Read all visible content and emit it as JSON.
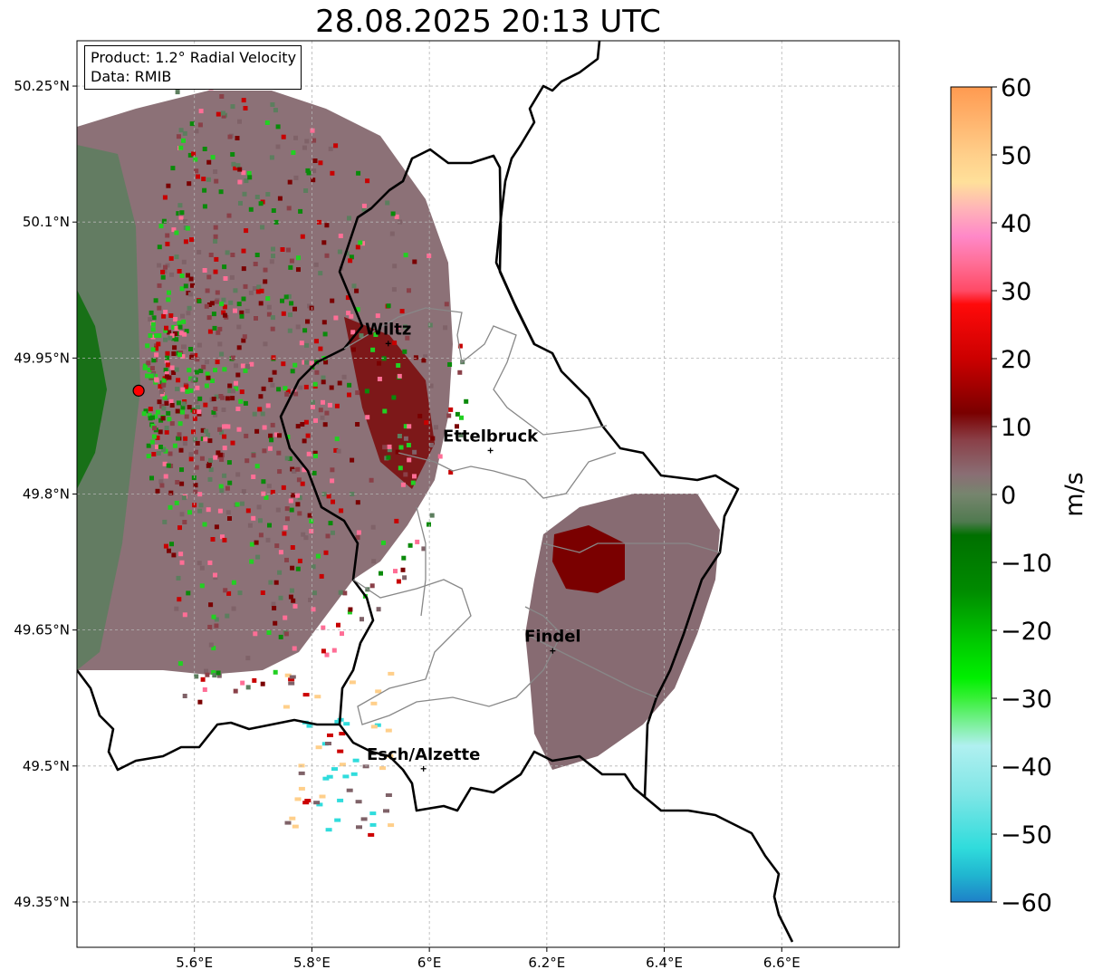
{
  "title": "28.08.2025 20:13 UTC",
  "info": {
    "product": "Product: 1.2° Radial Velocity",
    "data": "Data: RMIB"
  },
  "map": {
    "lon_range": [
      5.4,
      6.8
    ],
    "lat_range": [
      49.3,
      50.3
    ],
    "lon_ticks": [
      "5.6°E",
      "5.8°E",
      "6°E",
      "6.2°E",
      "6.4°E",
      "6.6°E"
    ],
    "lon_tick_values": [
      5.6,
      5.8,
      6.0,
      6.2,
      6.4,
      6.6
    ],
    "lat_ticks": [
      "50.25°N",
      "50.1°N",
      "49.95°N",
      "49.8°N",
      "49.65°N",
      "49.5°N",
      "49.35°N"
    ],
    "lat_tick_values": [
      50.25,
      50.1,
      49.95,
      49.8,
      49.65,
      49.5,
      49.35
    ],
    "grid": true,
    "radar_site": {
      "lon": 5.505,
      "lat": 49.914,
      "color": "#ff0000"
    },
    "cities": [
      {
        "name": "Wiltz",
        "lon": 5.93,
        "lat": 49.966
      },
      {
        "name": "Ettelbruck",
        "lon": 6.104,
        "lat": 49.848
      },
      {
        "name": "Findel",
        "lon": 6.21,
        "lat": 49.627
      },
      {
        "name": "Esch/Alzette",
        "lon": 5.99,
        "lat": 49.497
      }
    ]
  },
  "colorbar": {
    "label": "m/s",
    "range": [
      -60,
      60
    ],
    "ticks": [
      "60",
      "50",
      "40",
      "30",
      "20",
      "10",
      "0",
      "−10",
      "−20",
      "−30",
      "−40",
      "−50",
      "−60"
    ],
    "tick_values": [
      60,
      50,
      40,
      30,
      20,
      10,
      0,
      -10,
      -20,
      -30,
      -40,
      -50,
      -60
    ],
    "stops": [
      {
        "v": 60,
        "c": "#ff9a50"
      },
      {
        "v": 55,
        "c": "#ffb46e"
      },
      {
        "v": 50,
        "c": "#ffcf8a"
      },
      {
        "v": 46,
        "c": "#ffe09a"
      },
      {
        "v": 42,
        "c": "#ffb3b8"
      },
      {
        "v": 38,
        "c": "#ff88c8"
      },
      {
        "v": 34,
        "c": "#ff6e96"
      },
      {
        "v": 30,
        "c": "#ff4a66"
      },
      {
        "v": 28,
        "c": "#ff0a0a"
      },
      {
        "v": 20,
        "c": "#cc0000"
      },
      {
        "v": 12,
        "c": "#7a0000"
      },
      {
        "v": 8,
        "c": "#8a4048"
      },
      {
        "v": 3,
        "c": "#8a6e74"
      },
      {
        "v": 0,
        "c": "#76856e"
      },
      {
        "v": -4,
        "c": "#507a50"
      },
      {
        "v": -6,
        "c": "#007000"
      },
      {
        "v": -14,
        "c": "#008a00"
      },
      {
        "v": -22,
        "c": "#00cc00"
      },
      {
        "v": -27,
        "c": "#00f000"
      },
      {
        "v": -30,
        "c": "#38f038"
      },
      {
        "v": -34,
        "c": "#80f0a0"
      },
      {
        "v": -37,
        "c": "#b0f0f0"
      },
      {
        "v": -44,
        "c": "#80e6e6"
      },
      {
        "v": -52,
        "c": "#30dcdc"
      },
      {
        "v": -56,
        "c": "#20b6d0"
      },
      {
        "v": -60,
        "c": "#1e80c8"
      }
    ]
  }
}
